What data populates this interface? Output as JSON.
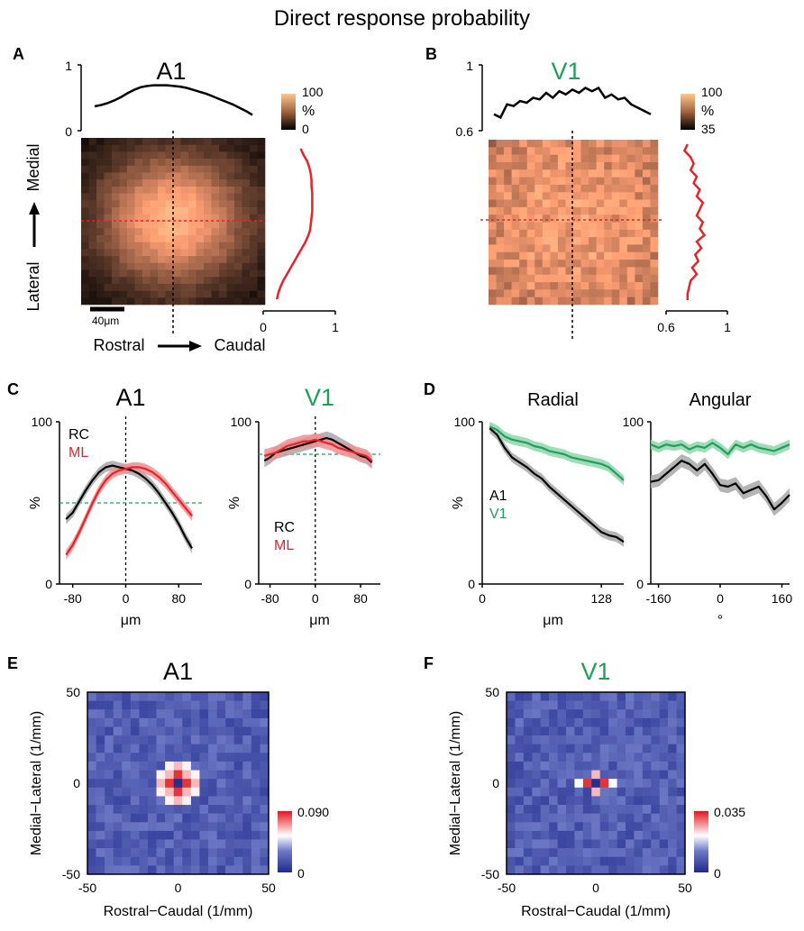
{
  "title": "Direct response probability",
  "colors": {
    "black": "#000000",
    "red": "#e3242b",
    "green": "#1fa05a",
    "green_light": "#8fd6ab",
    "gray_light": "#a8a8a8",
    "red_light": "#f08f92"
  },
  "panels": {
    "A": {
      "letter": "A",
      "title": "A1",
      "top_ticks": [
        "1",
        "0"
      ],
      "right_ticks": [
        "0",
        "1"
      ],
      "colorbar": {
        "max": "100",
        "unit": "%",
        "min": "0"
      },
      "medial": "Medial",
      "lateral": "Lateral",
      "rostral": "Rostral",
      "caudal": "Caudal",
      "scalebar": "40μm"
    },
    "B": {
      "letter": "B",
      "title": "V1",
      "top_ticks": [
        "1",
        "0.6"
      ],
      "right_ticks": [
        "0.6",
        "1"
      ],
      "colorbar": {
        "max": "100",
        "unit": "%",
        "min": "35"
      }
    },
    "C": {
      "letter": "C"
    },
    "D": {
      "letter": "D"
    },
    "E": {
      "letter": "E"
    },
    "F": {
      "letter": "F"
    }
  },
  "chart_data": [
    {
      "id": "A-top",
      "type": "line",
      "title": "A1",
      "series": [
        {
          "name": "rostral-caudal profile",
          "x": [
            0,
            1,
            2,
            3,
            4,
            5,
            6,
            7,
            8,
            9,
            10,
            11,
            12,
            13,
            14,
            15,
            16,
            17,
            18,
            19,
            20,
            21,
            22,
            23,
            24
          ],
          "values": [
            0.37,
            0.39,
            0.42,
            0.46,
            0.51,
            0.57,
            0.62,
            0.66,
            0.68,
            0.69,
            0.69,
            0.69,
            0.68,
            0.67,
            0.65,
            0.62,
            0.59,
            0.56,
            0.52,
            0.48,
            0.44,
            0.4,
            0.35,
            0.3,
            0.24
          ]
        }
      ],
      "ylim": [
        0,
        1
      ]
    },
    {
      "id": "A-right",
      "type": "line",
      "series": [
        {
          "name": "medial-lateral profile",
          "x": [
            0,
            1,
            2,
            3,
            4,
            5,
            6,
            7,
            8,
            9,
            10,
            11,
            12,
            13,
            14,
            15,
            16,
            17,
            18,
            19,
            20,
            21,
            22,
            23,
            24
          ],
          "values": [
            0.52,
            0.56,
            0.61,
            0.64,
            0.66,
            0.67,
            0.67,
            0.68,
            0.68,
            0.68,
            0.68,
            0.67,
            0.66,
            0.65,
            0.62,
            0.58,
            0.53,
            0.48,
            0.43,
            0.38,
            0.33,
            0.28,
            0.24,
            0.21,
            0.19
          ]
        }
      ],
      "xlim": [
        0,
        1
      ]
    },
    {
      "id": "B-top",
      "type": "line",
      "title": "V1",
      "series": [
        {
          "name": "rostral-caudal profile",
          "x": [
            0,
            1,
            2,
            3,
            4,
            5,
            6,
            7,
            8,
            9,
            10,
            11,
            12,
            13,
            14,
            15,
            16,
            17,
            18,
            19,
            20,
            21,
            22,
            23,
            24
          ],
          "values": [
            0.7,
            0.68,
            0.76,
            0.75,
            0.78,
            0.77,
            0.8,
            0.79,
            0.83,
            0.8,
            0.84,
            0.82,
            0.85,
            0.83,
            0.86,
            0.84,
            0.86,
            0.8,
            0.82,
            0.79,
            0.8,
            0.76,
            0.74,
            0.72,
            0.7
          ]
        }
      ],
      "ylim": [
        0.6,
        1
      ]
    },
    {
      "id": "B-right",
      "type": "line",
      "series": [
        {
          "name": "medial-lateral profile",
          "x": [
            0,
            1,
            2,
            3,
            4,
            5,
            6,
            7,
            8,
            9,
            10,
            11,
            12,
            13,
            14,
            15,
            16,
            17,
            18,
            19,
            20,
            21,
            22,
            23,
            24
          ],
          "values": [
            0.74,
            0.72,
            0.76,
            0.78,
            0.76,
            0.8,
            0.78,
            0.82,
            0.8,
            0.84,
            0.82,
            0.8,
            0.84,
            0.82,
            0.85,
            0.8,
            0.83,
            0.79,
            0.81,
            0.77,
            0.8,
            0.76,
            0.75,
            0.74,
            0.74
          ]
        }
      ],
      "xlim": [
        0.6,
        1
      ]
    },
    {
      "id": "C-A1",
      "type": "line",
      "title": "A1",
      "xlabel": "μm",
      "ylabel": "%",
      "xlim": [
        -100,
        115
      ],
      "ylim": [
        0,
        100
      ],
      "xticks": [
        -80,
        0,
        80
      ],
      "yticks": [
        0,
        100
      ],
      "reference_y": 50,
      "legend": [
        "RC",
        "ML"
      ],
      "series": [
        {
          "name": "RC",
          "x": [
            -90,
            -80,
            -70,
            -60,
            -50,
            -40,
            -30,
            -20,
            -10,
            0,
            10,
            20,
            30,
            40,
            50,
            60,
            70,
            80,
            90,
            100
          ],
          "values": [
            40,
            44,
            51,
            58,
            64,
            69,
            72,
            73,
            72,
            71,
            70,
            68,
            65,
            61,
            56,
            50,
            44,
            37,
            29,
            22
          ],
          "band": 3
        },
        {
          "name": "ML",
          "x": [
            -90,
            -80,
            -70,
            -60,
            -50,
            -40,
            -30,
            -20,
            -10,
            0,
            10,
            20,
            30,
            40,
            50,
            60,
            70,
            80,
            90,
            100
          ],
          "values": [
            18,
            24,
            32,
            41,
            50,
            58,
            64,
            68,
            70,
            71,
            72,
            72,
            71,
            69,
            66,
            62,
            57,
            52,
            47,
            42
          ],
          "band": 3
        }
      ]
    },
    {
      "id": "C-V1",
      "type": "line",
      "title": "V1",
      "xlabel": "μm",
      "ylabel": "%",
      "xlim": [
        -100,
        115
      ],
      "ylim": [
        0,
        100
      ],
      "xticks": [
        -80,
        0,
        80
      ],
      "yticks": [
        0,
        100
      ],
      "reference_y": 80,
      "legend": [
        "RC",
        "ML"
      ],
      "series": [
        {
          "name": "RC",
          "x": [
            -90,
            -80,
            -70,
            -60,
            -50,
            -40,
            -30,
            -20,
            -10,
            0,
            10,
            20,
            30,
            40,
            50,
            60,
            70,
            80,
            90,
            100
          ],
          "values": [
            76,
            78,
            81,
            82,
            83,
            84,
            85,
            86,
            87,
            88,
            89,
            90,
            89,
            87,
            85,
            83,
            81,
            79,
            78,
            75
          ],
          "band": 4
        },
        {
          "name": "ML",
          "x": [
            -90,
            -80,
            -70,
            -60,
            -50,
            -40,
            -30,
            -20,
            -10,
            0,
            10,
            20,
            30,
            40,
            50,
            60,
            70,
            80,
            90,
            100
          ],
          "values": [
            79,
            80,
            81,
            83,
            85,
            86,
            87,
            88,
            88,
            89,
            88,
            87,
            86,
            84,
            83,
            82,
            81,
            80,
            79,
            76
          ],
          "band": 4
        }
      ]
    },
    {
      "id": "D-radial",
      "type": "line",
      "title": "Radial",
      "xlabel": "μm",
      "ylabel": "%",
      "xlim": [
        0,
        152
      ],
      "ylim": [
        0,
        100
      ],
      "xticks": [
        0,
        128
      ],
      "yticks": [
        0,
        100
      ],
      "legend": [
        "A1",
        "V1"
      ],
      "series": [
        {
          "name": "A1",
          "x": [
            8,
            16,
            24,
            32,
            40,
            48,
            56,
            64,
            72,
            80,
            88,
            96,
            104,
            112,
            120,
            128,
            136,
            144,
            152
          ],
          "values": [
            96,
            92,
            84,
            78,
            75,
            72,
            68,
            65,
            60,
            56,
            52,
            48,
            44,
            40,
            36,
            32,
            30,
            29,
            26
          ],
          "band": 3
        },
        {
          "name": "V1",
          "x": [
            8,
            16,
            24,
            32,
            40,
            48,
            56,
            64,
            72,
            80,
            88,
            96,
            104,
            112,
            120,
            128,
            136,
            144,
            152
          ],
          "values": [
            97,
            95,
            91,
            89,
            88,
            87,
            85,
            84,
            82,
            81,
            80,
            78,
            77,
            76,
            75,
            74,
            72,
            68,
            64
          ],
          "band": 3
        }
      ]
    },
    {
      "id": "D-angular",
      "type": "line",
      "title": "Angular",
      "xlabel": "°",
      "xlim": [
        -180,
        180
      ],
      "ylim": [
        0,
        100
      ],
      "xticks": [
        -160,
        0,
        160
      ],
      "yticks": [
        0,
        100
      ],
      "series": [
        {
          "name": "A1",
          "x": [
            -180,
            -160,
            -140,
            -120,
            -100,
            -80,
            -60,
            -40,
            -20,
            0,
            20,
            40,
            60,
            80,
            100,
            120,
            140,
            160,
            180
          ],
          "values": [
            63,
            64,
            68,
            72,
            76,
            74,
            70,
            74,
            68,
            61,
            60,
            62,
            56,
            58,
            60,
            54,
            46,
            50,
            55
          ],
          "band": 4
        },
        {
          "name": "V1",
          "x": [
            -180,
            -160,
            -140,
            -120,
            -100,
            -80,
            -60,
            -40,
            -20,
            0,
            20,
            40,
            60,
            80,
            100,
            120,
            140,
            160,
            180
          ],
          "values": [
            86,
            84,
            86,
            85,
            86,
            83,
            85,
            84,
            87,
            84,
            80,
            86,
            84,
            86,
            84,
            83,
            82,
            84,
            86
          ],
          "band": 3
        }
      ]
    },
    {
      "id": "E",
      "type": "heatmap",
      "title": "A1",
      "xlabel": "Rostral−Caudal (1/mm)",
      "ylabel": "Medial−Lateral (1/mm)",
      "xlim": [
        -50,
        50
      ],
      "ylim": [
        -50,
        50
      ],
      "xticks": [
        -50,
        0,
        50
      ],
      "yticks": [
        -50,
        0,
        50
      ],
      "colorbar": {
        "min": "0",
        "max": "0.090"
      },
      "vmax": 0.09,
      "grid": 21
    },
    {
      "id": "F",
      "type": "heatmap",
      "title": "V1",
      "xlabel": "Rostral−Caudal (1/mm)",
      "ylabel": "Medial−Lateral (1/mm)",
      "xlim": [
        -50,
        50
      ],
      "ylim": [
        -50,
        50
      ],
      "xticks": [
        -50,
        0,
        50
      ],
      "yticks": [
        -50,
        0,
        50
      ],
      "colorbar": {
        "min": "0",
        "max": "0.035"
      },
      "vmax": 0.035,
      "grid": 21
    }
  ]
}
